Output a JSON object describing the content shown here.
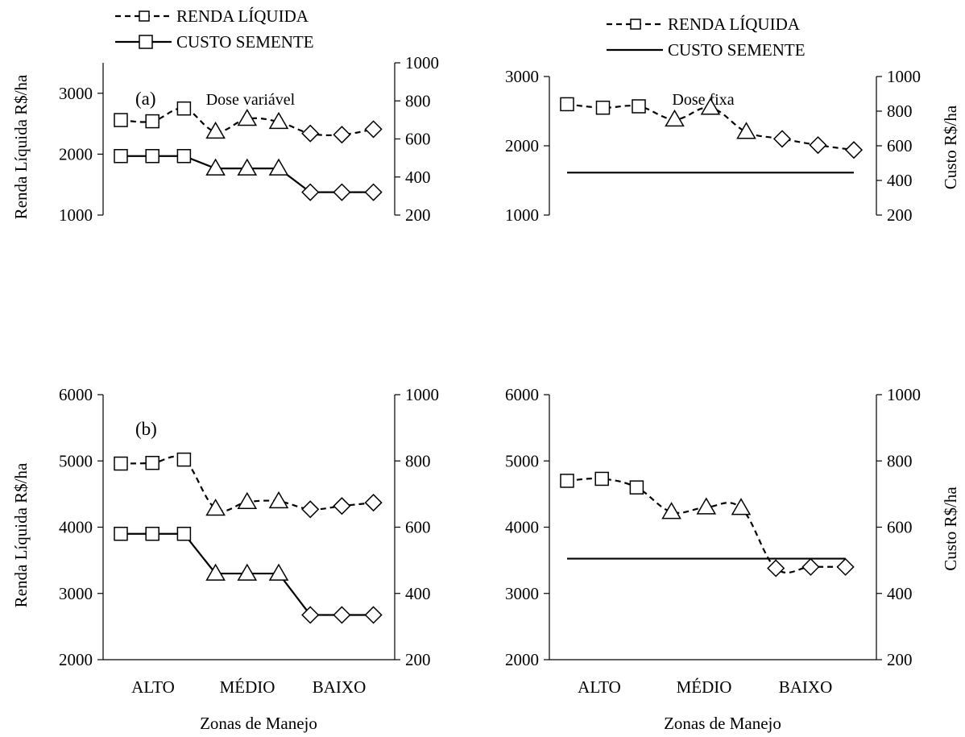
{
  "legends": [
    {
      "items": [
        {
          "label": "RENDA LÍQUIDA",
          "style": "dashed",
          "marker": "square"
        },
        {
          "label": "CUSTO SEMENTE",
          "style": "solid",
          "marker": "square"
        }
      ]
    },
    {
      "items": [
        {
          "label": "RENDA LÍQUIDA",
          "style": "dashed",
          "marker": "square"
        },
        {
          "label": "CUSTO SEMENTE",
          "style": "solid",
          "marker": "none"
        }
      ]
    }
  ],
  "chart_data": [
    {
      "type": "line",
      "panel_label": "(a)",
      "title": "Dose variável",
      "ylabel": "Renda  Líquida R$/ha",
      "y2label": "",
      "xlabel": "",
      "categories": [
        "ALTO",
        "MÉDIO",
        "BAIXO"
      ],
      "tick_labels": [],
      "ylim": [
        1000,
        3500
      ],
      "yticks": [
        1000,
        2000,
        3000
      ],
      "y2lim": [
        200,
        1000
      ],
      "y2ticks": [
        200,
        400,
        600,
        800,
        1000
      ],
      "x": [
        1,
        2,
        3,
        4,
        5,
        6,
        7,
        8,
        9
      ],
      "markers": [
        "square",
        "square",
        "square",
        "triangle",
        "triangle",
        "triangle",
        "diamond",
        "diamond",
        "diamond"
      ],
      "series": [
        {
          "name": "RENDA LÍQUIDA",
          "axis": "left",
          "style": "dashed",
          "show_markers": true,
          "values": [
            2560,
            2540,
            2750,
            2370,
            2580,
            2530,
            2340,
            2320,
            2410
          ]
        },
        {
          "name": "CUSTO SEMENTE",
          "axis": "right",
          "style": "solid",
          "show_markers": true,
          "values": [
            510,
            510,
            510,
            445,
            445,
            445,
            320,
            320,
            320
          ]
        }
      ]
    },
    {
      "type": "line",
      "panel_label": "",
      "title": "Dose fixa",
      "ylabel": "",
      "y2label": "Custo R$/ha",
      "xlabel": "",
      "categories": [
        "ALTO",
        "MÉDIO",
        "BAIXO"
      ],
      "tick_labels": [],
      "ylim": [
        1000,
        3000
      ],
      "yticks": [
        1000,
        2000,
        3000
      ],
      "y2lim": [
        200,
        1000
      ],
      "y2ticks": [
        200,
        400,
        600,
        800,
        1000
      ],
      "x": [
        1,
        2,
        3,
        4,
        5,
        6,
        7,
        8,
        9
      ],
      "markers": [
        "square",
        "square",
        "square",
        "triangle",
        "triangle",
        "triangle",
        "diamond",
        "diamond",
        "diamond"
      ],
      "series": [
        {
          "name": "RENDA LÍQUIDA",
          "axis": "left",
          "style": "dashed",
          "show_markers": true,
          "values": [
            2600,
            2550,
            2570,
            2380,
            2550,
            2200,
            2100,
            2010,
            1940
          ]
        },
        {
          "name": "CUSTO SEMENTE",
          "axis": "right",
          "style": "solid",
          "show_markers": false,
          "values": [
            445,
            445,
            445,
            445,
            445,
            445,
            445,
            445,
            445
          ]
        }
      ]
    },
    {
      "type": "line",
      "panel_label": "(b)",
      "title": "",
      "ylabel": "Renda  Líquida R$/ha",
      "y2label": "",
      "xlabel": "Zonas de Manejo",
      "categories": [
        "ALTO",
        "MÉDIO",
        "BAIXO"
      ],
      "tick_labels": [
        "ALTO",
        "MÉDIO",
        "BAIXO"
      ],
      "ylim": [
        2000,
        6000
      ],
      "yticks": [
        2000,
        3000,
        4000,
        5000,
        6000
      ],
      "y2lim": [
        200,
        1000
      ],
      "y2ticks": [
        200,
        400,
        600,
        800,
        1000
      ],
      "x": [
        1,
        2,
        3,
        4,
        5,
        6,
        7,
        8,
        9
      ],
      "markers": [
        "square",
        "square",
        "square",
        "triangle",
        "triangle",
        "triangle",
        "diamond",
        "diamond",
        "diamond"
      ],
      "series": [
        {
          "name": "RENDA LÍQUIDA",
          "axis": "left",
          "style": "dashed",
          "show_markers": true,
          "values": [
            4960,
            4970,
            5020,
            4280,
            4380,
            4390,
            4270,
            4320,
            4370
          ]
        },
        {
          "name": "CUSTO SEMENTE",
          "axis": "right",
          "style": "solid",
          "show_markers": true,
          "values": [
            580,
            580,
            580,
            460,
            460,
            460,
            335,
            335,
            335
          ]
        }
      ]
    },
    {
      "type": "line",
      "panel_label": "",
      "title": "",
      "ylabel": "",
      "y2label": "Custo R$/ha",
      "xlabel": "Zonas de Manejo",
      "categories": [
        "ALTO",
        "MÉDIO",
        "BAIXO"
      ],
      "tick_labels": [
        "ALTO",
        "MÉDIO",
        "BAIXO"
      ],
      "ylim": [
        2000,
        6000
      ],
      "yticks": [
        2000,
        3000,
        4000,
        5000,
        6000
      ],
      "y2lim": [
        200,
        1000
      ],
      "y2ticks": [
        200,
        400,
        600,
        800,
        1000
      ],
      "x": [
        1,
        2,
        3,
        4,
        5,
        6,
        7,
        8,
        9
      ],
      "markers": [
        "square",
        "square",
        "square",
        "triangle",
        "triangle",
        "triangle",
        "diamond",
        "diamond",
        "diamond"
      ],
      "series": [
        {
          "name": "RENDA LÍQUIDA",
          "axis": "left",
          "style": "dashed",
          "show_markers": true,
          "values": [
            4700,
            4730,
            4600,
            4230,
            4300,
            4290,
            3380,
            3400,
            3400
          ]
        },
        {
          "name": "CUSTO SEMENTE",
          "axis": "right",
          "style": "solid",
          "show_markers": false,
          "values": [
            505,
            505,
            505,
            505,
            505,
            505,
            505,
            505,
            505
          ]
        }
      ]
    }
  ]
}
